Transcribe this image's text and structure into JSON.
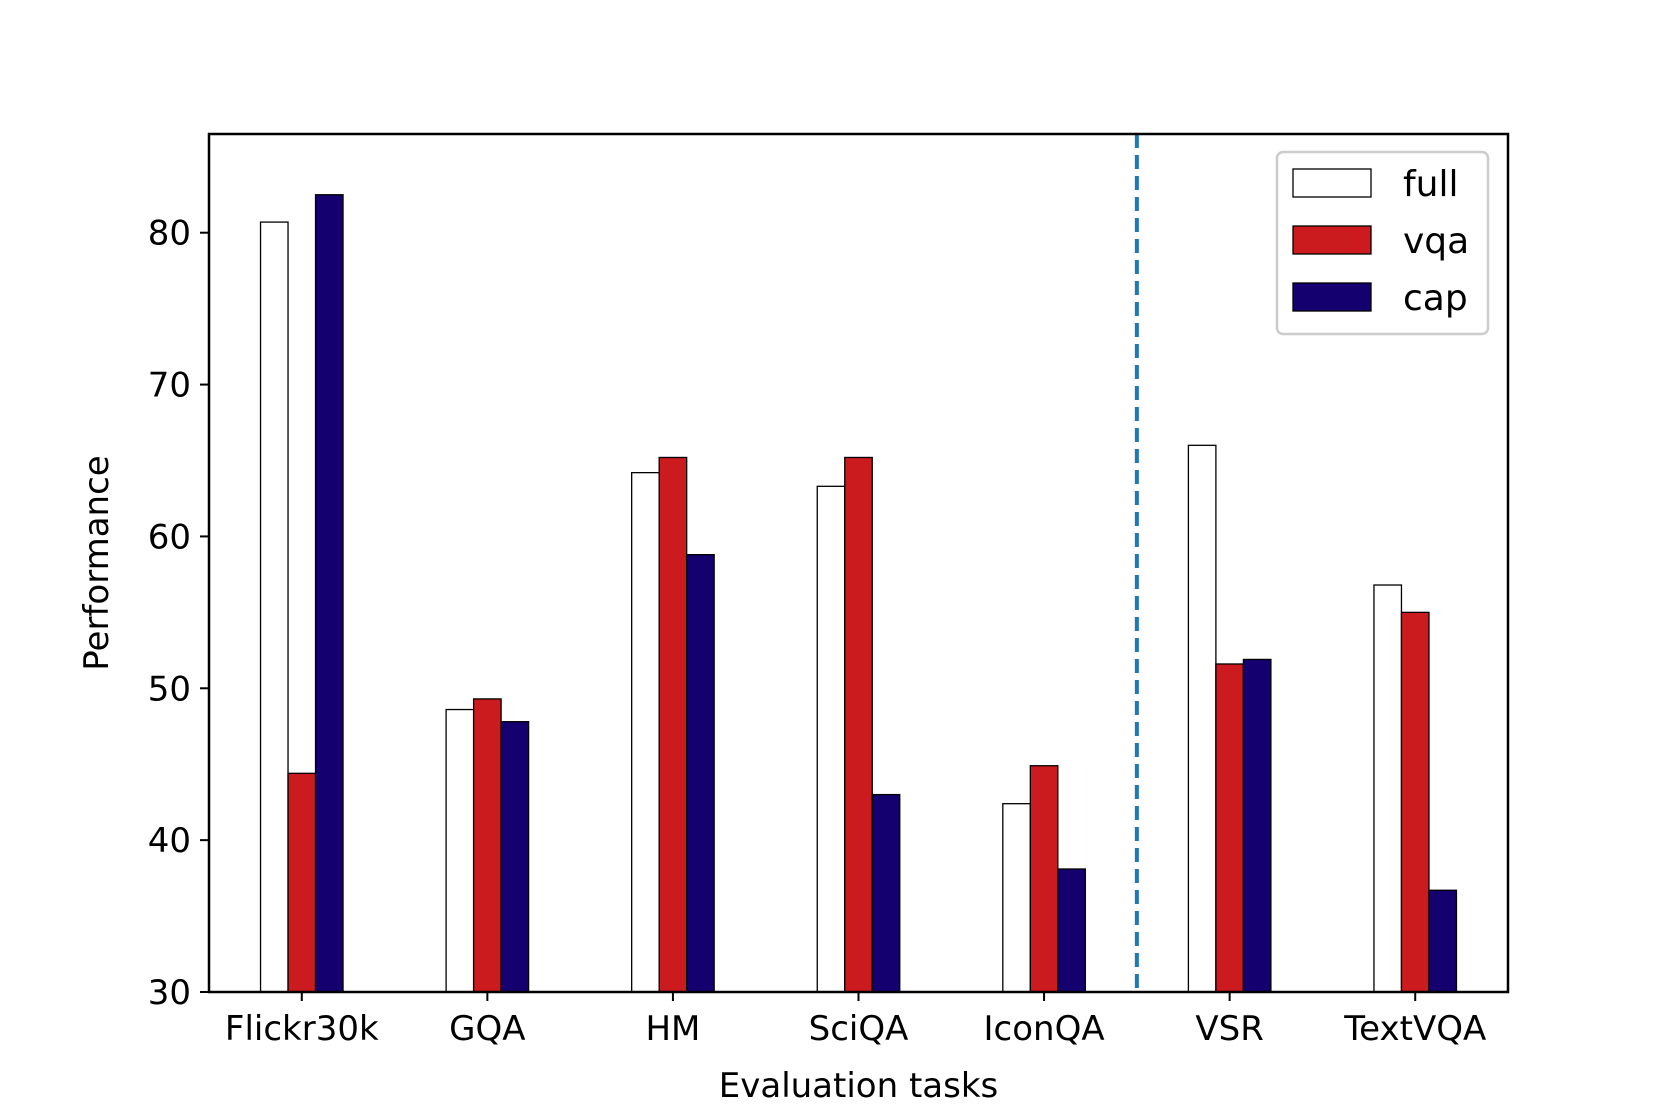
{
  "chart_data": {
    "type": "bar",
    "title": "",
    "xlabel": "Evaluation tasks",
    "ylabel": "Performance",
    "categories": [
      "Flickr30k",
      "GQA",
      "HM",
      "SciQA",
      "IconQA",
      "VSR",
      "TextVQA"
    ],
    "ylim": [
      30,
      86.5
    ],
    "yticks": [
      30,
      40,
      50,
      60,
      70,
      80
    ],
    "grid": false,
    "legend_position": "top-right",
    "divider_after_category": "IconQA",
    "series": [
      {
        "name": "full",
        "color": "#ffffff",
        "values": [
          80.7,
          48.6,
          64.2,
          63.3,
          42.4,
          66.0,
          56.8
        ]
      },
      {
        "name": "vqa",
        "color": "#cc1b1e",
        "values": [
          44.4,
          49.3,
          65.2,
          65.2,
          44.9,
          51.6,
          55.0
        ]
      },
      {
        "name": "cap",
        "color": "#150070",
        "values": [
          82.5,
          47.8,
          58.8,
          43.0,
          38.1,
          51.9,
          36.7
        ]
      }
    ],
    "divider_color": "#1f77b4"
  }
}
